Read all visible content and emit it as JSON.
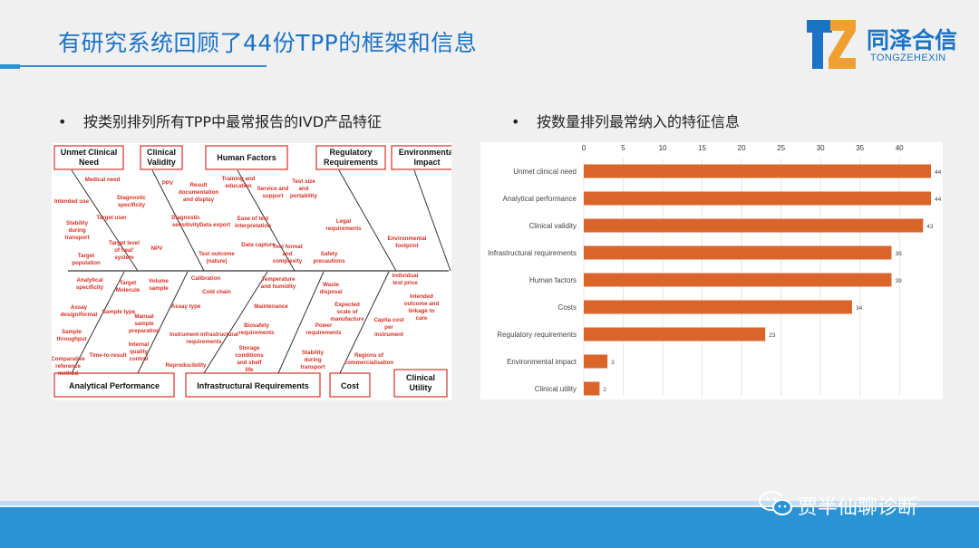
{
  "slide": {
    "title": "有研究系统回顾了44份TPP的框架和信息",
    "bullet_left": "按类别排列所有TPP中最常报告的IVD产品特征",
    "bullet_right": "按数量排列最常纳入的特征信息",
    "bullet_symbol": "•"
  },
  "logo": {
    "cn": "同泽合信",
    "en": "TONGZEHEXIN",
    "colors": {
      "blue": "#1a73c6",
      "orange": "#f0a030"
    }
  },
  "watermark": {
    "text": "贾半仙聊诊断",
    "icon": "wechat-icon"
  },
  "fishbone": {
    "top_categories": [
      "Unmet Clinical Need",
      "Clinical Validity",
      "Human Factors",
      "Regulatory Requirements",
      "Environmental Impact"
    ],
    "bottom_categories": [
      "Analytical Performance",
      "Infrastructural Requirements",
      "Cost",
      "Clinical Utility"
    ],
    "labels": {
      "t1": [
        "Medical need",
        "Intended use",
        "Diagnostic specificity",
        "Stability during transport",
        "Target user",
        "Target level of heal' system",
        "Target population"
      ],
      "t2": [
        "PPV",
        "Diagnostic sensitivity",
        "NPV"
      ],
      "t3": [
        "Result documentation and display",
        "Training and education",
        "Data export",
        "Ease of test interpretation",
        "Test outcome (nature)",
        "Data capture"
      ],
      "t4": [
        "Service and support",
        "Test size and portability",
        "Legal requirements",
        "Tool format and complexity",
        "Safety precautions"
      ],
      "t5": [
        "Environmental footprint"
      ],
      "b1": [
        "Analytical specificity",
        "Target Molecule",
        "Assay design/format",
        "Sample type",
        "Sample throughput",
        "Comparative reference method",
        "Time-to-result"
      ],
      "b2": [
        "Volume sample",
        "Manual sample preparation",
        "Internal quality control",
        "Reproducibility",
        "Calibration",
        "Cold chain",
        "Assay type",
        "Instrument-infrastructural requirements"
      ],
      "b3": [
        "Temperature and humidity",
        "Maintenance",
        "Biosafety requirements",
        "Storage conditions and shelf life"
      ],
      "b4": [
        "Waste disposal",
        "Expected scale of manufacture",
        "Power requirements",
        "Stability during transport"
      ],
      "b5": [
        "Individual test price",
        "Intended outcome and linkage to care",
        "Capita cost per instrument",
        "Regions of commercialisation"
      ]
    }
  },
  "chart_data": {
    "type": "bar",
    "orientation": "horizontal",
    "categories": [
      "Unmet clinical need",
      "Analytical performance",
      "Clinical validity",
      "Infrastructural requirements",
      "Human factors",
      "Costs",
      "Regulatory requirements",
      "Environmental impact",
      "Clinical utility"
    ],
    "values": [
      44,
      44,
      43,
      39,
      39,
      34,
      23,
      3,
      2
    ],
    "xlim": [
      0,
      44
    ],
    "xticks": [
      0,
      5,
      10,
      15,
      20,
      25,
      30,
      35,
      40
    ],
    "bar_color": "#d9652b",
    "grid": true
  }
}
